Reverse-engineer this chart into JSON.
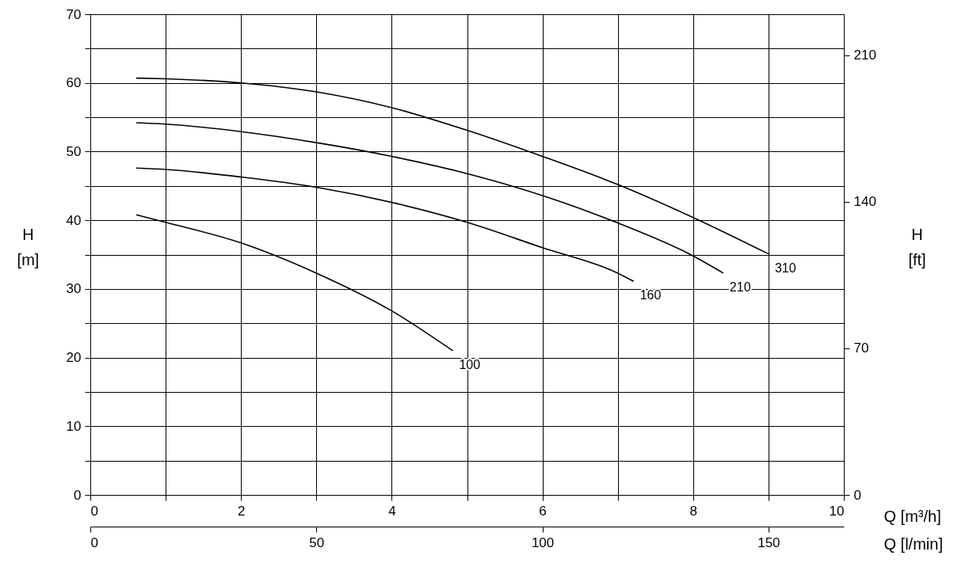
{
  "chart_data": {
    "type": "line",
    "xlabel": "Q [m³/h]",
    "ylabel": "H [m]",
    "y2label": "H [ft]",
    "x2label": "Q [l/min]",
    "xlim": [
      0,
      10
    ],
    "xticks": [
      0,
      {
        "value": 1,
        "label": null
      },
      2,
      {
        "value": 3,
        "label": null
      },
      4,
      {
        "value": 5,
        "label": null
      },
      6,
      {
        "value": 7,
        "label": null
      },
      8,
      {
        "value": 9,
        "label": null
      },
      10
    ],
    "ylim": [
      0,
      70
    ],
    "yticks": [
      0,
      {
        "value": 5,
        "label": null
      },
      10,
      {
        "value": 15,
        "label": null
      },
      20,
      {
        "value": 25,
        "label": null
      },
      30,
      {
        "value": 35,
        "label": null
      },
      40,
      {
        "value": 45,
        "label": null
      },
      50,
      {
        "value": 55,
        "label": null
      },
      60,
      {
        "value": 65,
        "label": null
      },
      70
    ],
    "x2lim": [
      0,
      166.67
    ],
    "x2ticks": [
      0,
      50,
      100,
      150
    ],
    "y2lim": [
      0,
      229.66
    ],
    "y2ticks": [
      0,
      70,
      140,
      210
    ],
    "grid": true,
    "marker": "none",
    "line_style": "solid",
    "series": [
      {
        "name": "100",
        "color": "#000000",
        "x": [
          0.61,
          1,
          2,
          3,
          4,
          4.81
        ],
        "values": [
          40.8,
          39.7,
          36.7,
          32.3,
          26.8,
          21.0
        ]
      },
      {
        "name": "160",
        "color": "#000000",
        "x": [
          0.61,
          1,
          2,
          3,
          4,
          5,
          6,
          7,
          7.21
        ],
        "values": [
          47.6,
          47.4,
          46.3,
          44.8,
          42.6,
          39.7,
          36.0,
          32.3,
          31.1
        ]
      },
      {
        "name": "210",
        "color": "#000000",
        "x": [
          0.61,
          1,
          2,
          3,
          4,
          5,
          6,
          7,
          8,
          8.4
        ],
        "values": [
          54.2,
          54.0,
          52.9,
          51.3,
          49.3,
          46.8,
          43.6,
          39.6,
          34.8,
          32.3
        ]
      },
      {
        "name": "310",
        "color": "#000000",
        "x": [
          0.61,
          1,
          2,
          3,
          4,
          5,
          6,
          7,
          8,
          9
        ],
        "values": [
          60.7,
          60.6,
          60.0,
          58.7,
          56.4,
          53.1,
          49.3,
          45.2,
          40.4,
          35.1
        ]
      }
    ]
  }
}
